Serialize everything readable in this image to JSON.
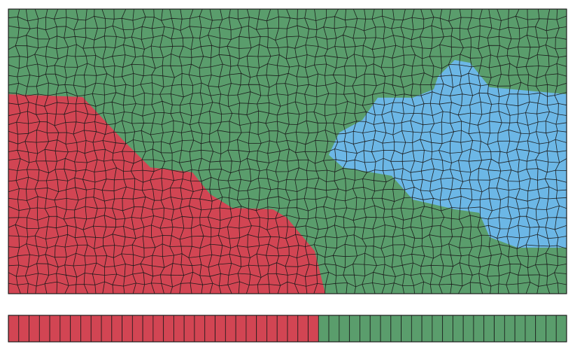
{
  "colors": {
    "red_region": "#d24553",
    "green_region": "#5a9d6c",
    "blue_region": "#6cb7e6",
    "mesh_line": "#1a1a1a",
    "background": "#ffffff"
  },
  "regions": [
    {
      "name": "red-region",
      "color_key": "red_region"
    },
    {
      "name": "green-region",
      "color_key": "green_region"
    },
    {
      "name": "blue-region",
      "color_key": "blue_region"
    }
  ],
  "strip": {
    "segments": [
      {
        "color_key": "red_region",
        "cells": 30
      },
      {
        "color_key": "green_region",
        "cells": 24
      }
    ]
  }
}
